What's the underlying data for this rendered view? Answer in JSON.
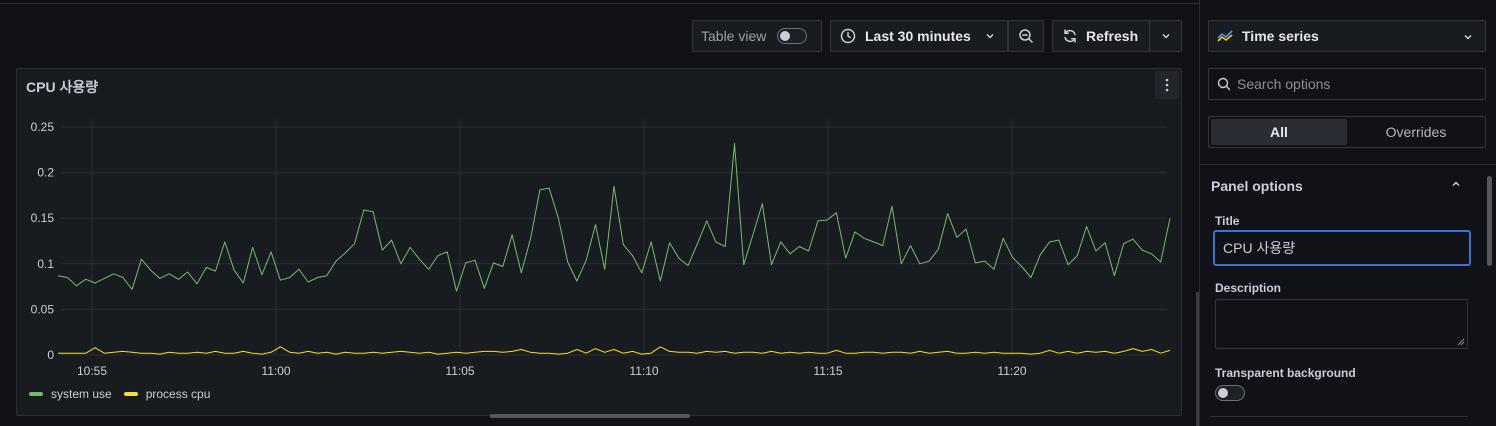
{
  "toolbar": {
    "table_view_label": "Table view",
    "time_range_label": "Last 30 minutes",
    "refresh_label": "Refresh"
  },
  "panel": {
    "title": "CPU 사용량"
  },
  "chart_data": {
    "type": "line",
    "x_ticks": [
      "10:55",
      "11:00",
      "11:05",
      "11:10",
      "11:15",
      "11:20"
    ],
    "y_ticks": [
      "0.25",
      "0.2",
      "0.15",
      "0.1",
      "0.05",
      "0"
    ],
    "ylim": [
      0,
      0.25
    ],
    "grid": true,
    "legend_position": "bottom-left",
    "series": [
      {
        "name": "system use",
        "color": "#73bf69",
        "values": [
          0.087,
          0.085,
          0.076,
          0.083,
          0.079,
          0.084,
          0.089,
          0.085,
          0.072,
          0.105,
          0.093,
          0.084,
          0.089,
          0.083,
          0.091,
          0.078,
          0.096,
          0.092,
          0.124,
          0.093,
          0.079,
          0.118,
          0.088,
          0.113,
          0.082,
          0.085,
          0.094,
          0.08,
          0.085,
          0.087,
          0.103,
          0.112,
          0.122,
          0.159,
          0.157,
          0.115,
          0.126,
          0.1,
          0.118,
          0.105,
          0.094,
          0.109,
          0.113,
          0.07,
          0.101,
          0.104,
          0.073,
          0.101,
          0.097,
          0.132,
          0.09,
          0.128,
          0.181,
          0.183,
          0.15,
          0.102,
          0.081,
          0.104,
          0.143,
          0.094,
          0.185,
          0.121,
          0.109,
          0.09,
          0.124,
          0.081,
          0.123,
          0.106,
          0.098,
          0.122,
          0.147,
          0.124,
          0.119,
          0.232,
          0.099,
          0.132,
          0.166,
          0.099,
          0.124,
          0.111,
          0.119,
          0.114,
          0.147,
          0.148,
          0.156,
          0.106,
          0.135,
          0.128,
          0.124,
          0.12,
          0.163,
          0.1,
          0.12,
          0.1,
          0.103,
          0.116,
          0.155,
          0.129,
          0.138,
          0.101,
          0.103,
          0.094,
          0.128,
          0.107,
          0.097,
          0.085,
          0.11,
          0.124,
          0.126,
          0.099,
          0.109,
          0.141,
          0.114,
          0.123,
          0.087,
          0.122,
          0.127,
          0.115,
          0.111,
          0.102,
          0.15
        ]
      },
      {
        "name": "process cpu",
        "color": "#fade2a",
        "values": [
          0.002,
          0.002,
          0.002,
          0.002,
          0.008,
          0.002,
          0.003,
          0.004,
          0.003,
          0.002,
          0.002,
          0.001,
          0.003,
          0.002,
          0.002,
          0.003,
          0.002,
          0.004,
          0.002,
          0.002,
          0.004,
          0.002,
          0.001,
          0.003,
          0.009,
          0.003,
          0.002,
          0.004,
          0.002,
          0.003,
          0.001,
          0.003,
          0.002,
          0.002,
          0.003,
          0.002,
          0.003,
          0.004,
          0.003,
          0.002,
          0.003,
          0.001,
          0.002,
          0.003,
          0.002,
          0.003,
          0.004,
          0.004,
          0.003,
          0.004,
          0.006,
          0.003,
          0.002,
          0.002,
          0.001,
          0.002,
          0.006,
          0.002,
          0.007,
          0.003,
          0.006,
          0.002,
          0.004,
          0.001,
          0.002,
          0.009,
          0.004,
          0.003,
          0.003,
          0.002,
          0.004,
          0.003,
          0.004,
          0.002,
          0.003,
          0.003,
          0.002,
          0.004,
          0.002,
          0.003,
          0.002,
          0.003,
          0.002,
          0.002,
          0.005,
          0.002,
          0.002,
          0.003,
          0.003,
          0.002,
          0.003,
          0.003,
          0.002,
          0.004,
          0.002,
          0.003,
          0.004,
          0.002,
          0.002,
          0.003,
          0.002,
          0.003,
          0.002,
          0.002,
          0.002,
          0.001,
          0.002,
          0.005,
          0.002,
          0.004,
          0.002,
          0.004,
          0.003,
          0.004,
          0.002,
          0.004,
          0.007,
          0.004,
          0.006,
          0.002,
          0.005
        ]
      }
    ]
  },
  "sidebar": {
    "viz_label": "Time series",
    "search_placeholder": "Search options",
    "tab_all": "All",
    "tab_overrides": "Overrides",
    "section_title": "Panel options",
    "title_label": "Title",
    "title_value": "CPU 사용량",
    "description_label": "Description",
    "transparent_label": "Transparent background"
  }
}
